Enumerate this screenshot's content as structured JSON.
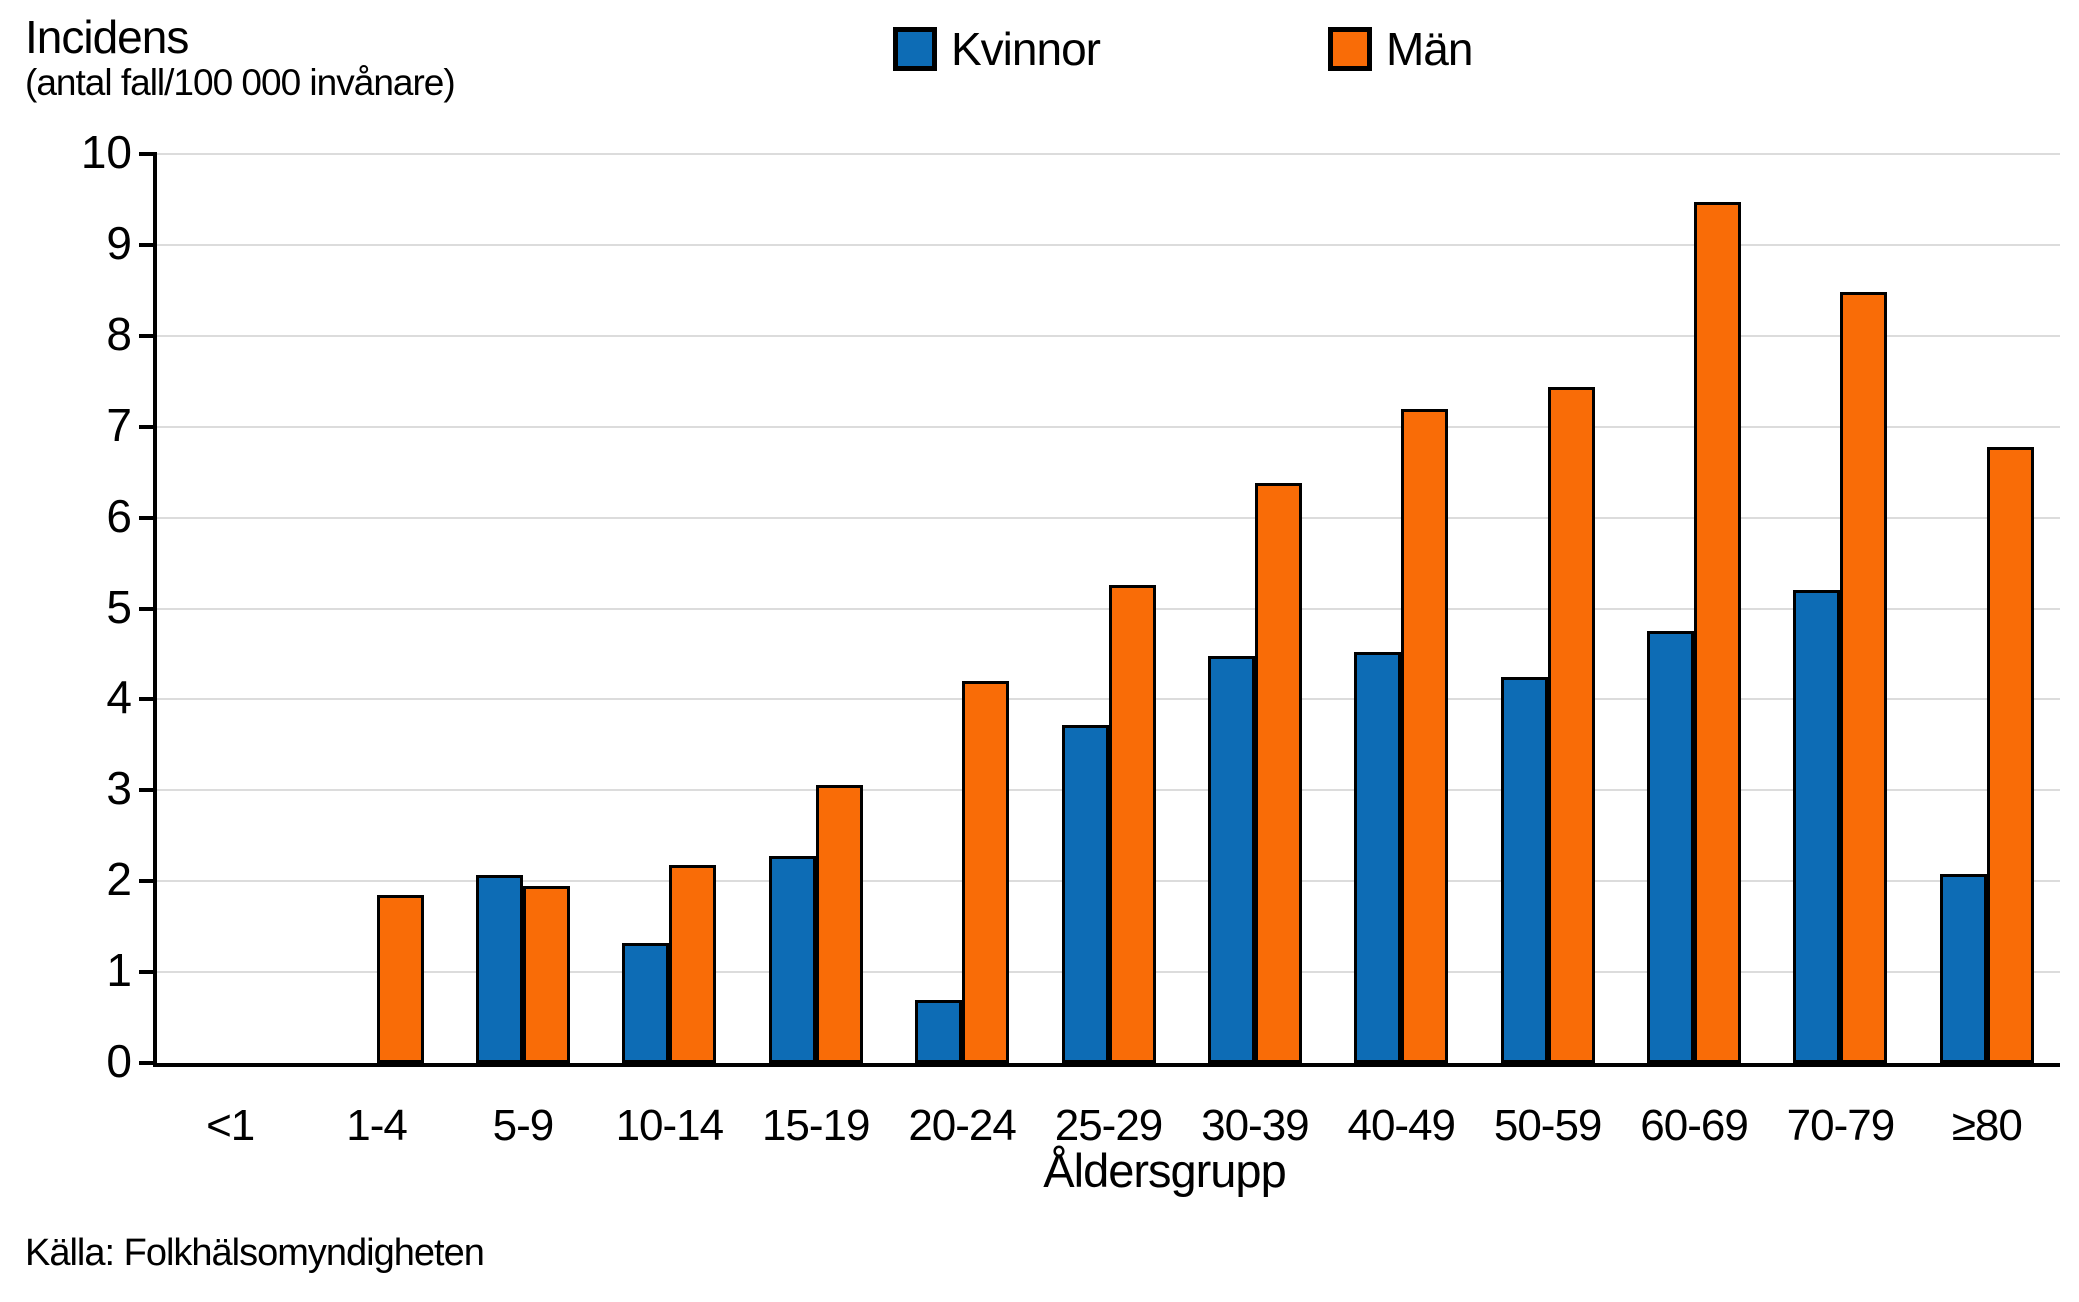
{
  "title": {
    "line1": "Incidens",
    "line2": "(antal fall/100 000 invånare)"
  },
  "legend": [
    {
      "label": "Kvinnor",
      "color": "#0d6cb5"
    },
    {
      "label": "Män",
      "color": "#f96c07"
    }
  ],
  "xaxis_title": "Åldersgrupp",
  "source": "Källa: Folkhälsomyndigheten",
  "chart_data": {
    "type": "bar",
    "title": "Incidens (antal fall/100 000 invånare)",
    "xlabel": "Åldersgrupp",
    "ylabel": "Incidens (antal fall/100 000 invånare)",
    "categories": [
      "<1",
      "1-4",
      "5-9",
      "10-14",
      "15-19",
      "20-24",
      "25-29",
      "30-39",
      "40-49",
      "50-59",
      "60-69",
      "70-79",
      "≥80"
    ],
    "series": [
      {
        "name": "Kvinnor",
        "color": "#0d6cb5",
        "values": [
          0,
          0,
          2.07,
          1.32,
          2.28,
          0.69,
          3.72,
          4.48,
          4.52,
          4.25,
          4.75,
          5.2,
          2.08
        ]
      },
      {
        "name": "Män",
        "color": "#f96c07",
        "values": [
          0,
          1.85,
          1.95,
          2.18,
          3.06,
          4.2,
          5.26,
          6.38,
          7.2,
          7.44,
          9.47,
          8.48,
          6.78
        ]
      }
    ],
    "ylim": [
      0,
      10
    ],
    "ytick_step": 1,
    "yticks": [
      0,
      1,
      2,
      3,
      4,
      5,
      6,
      7,
      8,
      9,
      10
    ],
    "grid": "horizontal",
    "gridline_color": "#dcdcdc",
    "bar_border_color": "#000000",
    "legend_position": "top-center",
    "source": "Källa: Folkhälsomyndigheten"
  }
}
